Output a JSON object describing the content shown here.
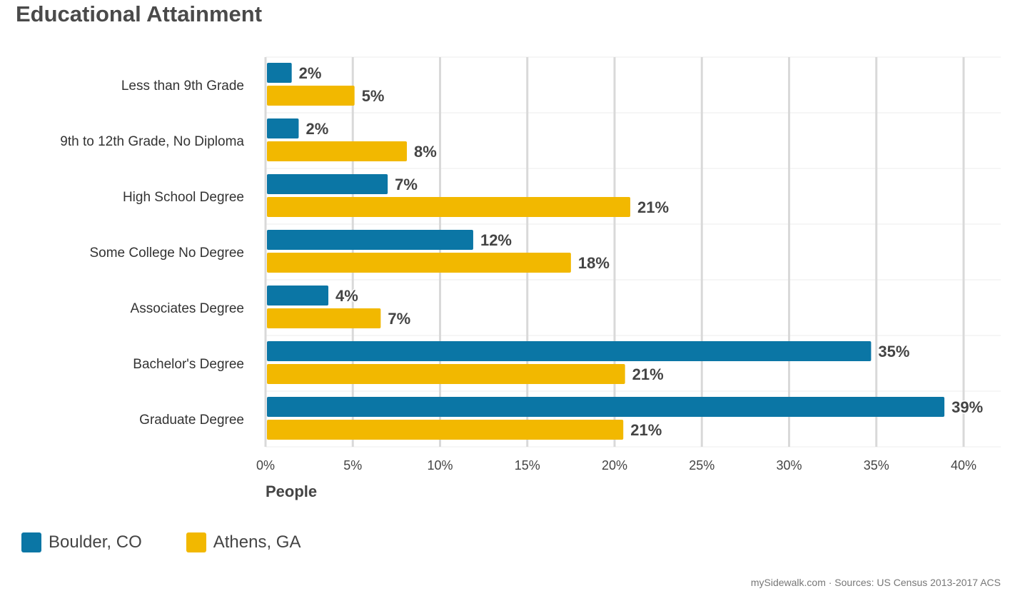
{
  "title": "Educational Attainment",
  "source": "mySidewalk.com · Sources: US Census 2013-2017 ACS",
  "colors": {
    "series_1": "#0b76a5",
    "series_2": "#f2b800",
    "grid": "#d9d9d9"
  },
  "legend": [
    {
      "label": "Boulder, CO",
      "color": "#0b76a5"
    },
    {
      "label": "Athens, GA",
      "color": "#f2b800"
    }
  ],
  "chart_data": {
    "type": "bar",
    "orientation": "horizontal",
    "title": "Educational Attainment",
    "xlabel": "People",
    "ylabel": "",
    "xlim": [
      0,
      42
    ],
    "x_ticks": [
      0,
      5,
      10,
      15,
      20,
      25,
      30,
      35,
      40
    ],
    "x_tick_labels": [
      "0%",
      "5%",
      "10%",
      "15%",
      "20%",
      "25%",
      "30%",
      "35%",
      "40%"
    ],
    "grid": true,
    "legend_position": "bottom-left",
    "categories": [
      "Less than 9th Grade",
      "9th to 12th Grade, No Diploma",
      "High School Degree",
      "Some College No Degree",
      "Associates Degree",
      "Bachelor's Degree",
      "Graduate Degree"
    ],
    "series": [
      {
        "name": "Boulder, CO",
        "values": [
          1.5,
          1.9,
          7.0,
          11.9,
          3.6,
          34.7,
          38.9
        ],
        "labels": [
          "2%",
          "2%",
          "7%",
          "12%",
          "4%",
          "35%",
          "39%"
        ]
      },
      {
        "name": "Athens, GA",
        "values": [
          5.1,
          8.1,
          20.9,
          17.5,
          6.6,
          20.6,
          20.5
        ],
        "labels": [
          "5%",
          "8%",
          "21%",
          "18%",
          "7%",
          "21%",
          "21%"
        ]
      }
    ]
  }
}
